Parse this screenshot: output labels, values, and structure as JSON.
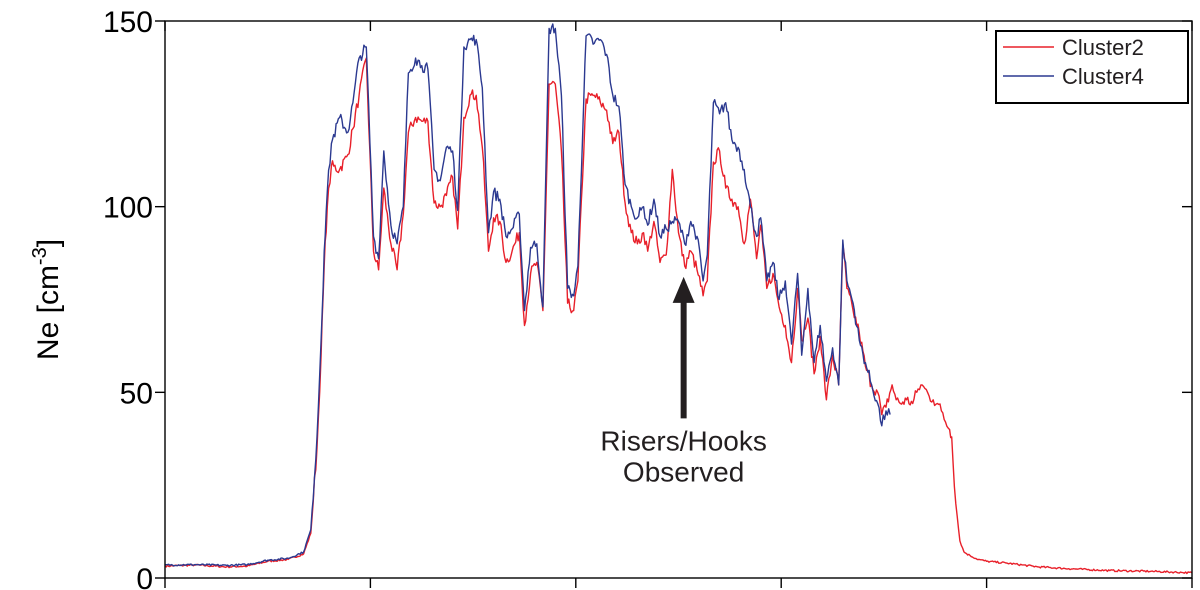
{
  "chart_data": {
    "type": "line",
    "ylabel": "Ne [cm",
    "ylabel_sup": "-3",
    "ylabel_close": "]",
    "xlabel": "",
    "ylim": [
      0,
      150
    ],
    "xlim": [
      0,
      1000
    ],
    "yticks": [
      0,
      50,
      100,
      150
    ],
    "ytick_labels": [
      "0",
      "50",
      "100",
      "150"
    ],
    "xticks": [
      0,
      200,
      400,
      600,
      800,
      1000
    ],
    "grid": false,
    "legend_position": "top-right",
    "series": [
      {
        "name": "Cluster2",
        "color": "#e8202a",
        "points": [
          [
            0,
            3.2
          ],
          [
            30,
            3.5
          ],
          [
            60,
            3.0
          ],
          [
            80,
            3.2
          ],
          [
            100,
            4.5
          ],
          [
            120,
            5.0
          ],
          [
            135,
            6.5
          ],
          [
            142,
            12
          ],
          [
            148,
            35
          ],
          [
            152,
            60
          ],
          [
            155,
            84
          ],
          [
            158,
            100
          ],
          [
            162,
            111
          ],
          [
            170,
            110
          ],
          [
            178,
            114
          ],
          [
            183,
            121
          ],
          [
            189,
            130
          ],
          [
            196,
            140
          ],
          [
            203,
            88
          ],
          [
            208,
            83
          ],
          [
            213,
            105
          ],
          [
            220,
            90
          ],
          [
            226,
            83
          ],
          [
            232,
            98
          ],
          [
            237,
            120
          ],
          [
            244,
            124
          ],
          [
            250,
            123
          ],
          [
            256,
            123
          ],
          [
            262,
            101
          ],
          [
            268,
            100
          ],
          [
            274,
            103
          ],
          [
            280,
            108
          ],
          [
            285,
            94
          ],
          [
            291,
            124
          ],
          [
            297,
            130
          ],
          [
            303,
            130
          ],
          [
            309,
            116
          ],
          [
            315,
            88
          ],
          [
            320,
            97
          ],
          [
            326,
            96
          ],
          [
            332,
            85
          ],
          [
            338,
            88
          ],
          [
            345,
            93
          ],
          [
            350,
            68
          ],
          [
            356,
            82
          ],
          [
            362,
            85
          ],
          [
            368,
            72
          ],
          [
            374,
            133
          ],
          [
            380,
            133
          ],
          [
            386,
            115
          ],
          [
            392,
            74
          ],
          [
            398,
            72
          ],
          [
            402,
            80
          ],
          [
            410,
            129
          ],
          [
            418,
            130
          ],
          [
            424,
            128
          ],
          [
            430,
            126
          ],
          [
            436,
            117
          ],
          [
            442,
            120
          ],
          [
            448,
            101
          ],
          [
            454,
            93
          ],
          [
            460,
            90
          ],
          [
            466,
            93
          ],
          [
            470,
            88
          ],
          [
            476,
            96
          ],
          [
            482,
            85
          ],
          [
            488,
            87
          ],
          [
            494,
            110
          ],
          [
            500,
            93
          ],
          [
            506,
            84
          ],
          [
            512,
            88
          ],
          [
            518,
            83
          ],
          [
            524,
            76
          ],
          [
            528,
            80
          ],
          [
            534,
            112
          ],
          [
            540,
            115
          ],
          [
            546,
            105
          ],
          [
            552,
            102
          ],
          [
            558,
            100
          ],
          [
            564,
            90
          ],
          [
            570,
            102
          ],
          [
            576,
            86
          ],
          [
            580,
            95
          ],
          [
            586,
            78
          ],
          [
            592,
            82
          ],
          [
            598,
            73
          ],
          [
            604,
            68
          ],
          [
            610,
            58
          ],
          [
            616,
            78
          ],
          [
            620,
            64
          ],
          [
            626,
            70
          ],
          [
            632,
            55
          ],
          [
            638,
            65
          ],
          [
            644,
            48
          ],
          [
            650,
            60
          ],
          [
            656,
            52
          ],
          [
            660,
            90
          ],
          [
            664,
            78
          ],
          [
            670,
            72
          ],
          [
            676,
            66
          ],
          [
            682,
            57
          ],
          [
            688,
            52
          ],
          [
            694,
            50
          ],
          [
            698,
            44
          ],
          [
            702,
            46
          ],
          [
            708,
            52
          ],
          [
            712,
            48
          ],
          [
            716,
            47
          ],
          [
            722,
            48
          ],
          [
            728,
            47
          ],
          [
            732,
            50
          ],
          [
            736,
            52
          ],
          [
            740,
            51
          ],
          [
            744,
            49
          ],
          [
            748,
            48
          ],
          [
            752,
            47
          ],
          [
            756,
            45
          ],
          [
            760,
            42
          ],
          [
            764,
            40
          ],
          [
            766,
            38
          ],
          [
            770,
            20
          ],
          [
            774,
            10
          ],
          [
            778,
            7
          ],
          [
            784,
            6
          ],
          [
            792,
            5
          ],
          [
            800,
            4.5
          ],
          [
            820,
            4
          ],
          [
            850,
            3
          ],
          [
            880,
            2.5
          ],
          [
            920,
            2
          ],
          [
            960,
            1.8
          ],
          [
            990,
            1.5
          ],
          [
            1000,
            1.4
          ]
        ]
      },
      {
        "name": "Cluster4",
        "color": "#2b3990",
        "points": [
          [
            0,
            3.5
          ],
          [
            30,
            3.6
          ],
          [
            60,
            3.4
          ],
          [
            80,
            3.6
          ],
          [
            100,
            4.8
          ],
          [
            120,
            5.3
          ],
          [
            135,
            7
          ],
          [
            142,
            13
          ],
          [
            148,
            38
          ],
          [
            152,
            64
          ],
          [
            155,
            88
          ],
          [
            158,
            104
          ],
          [
            162,
            117
          ],
          [
            170,
            124
          ],
          [
            178,
            120
          ],
          [
            183,
            128
          ],
          [
            189,
            140
          ],
          [
            196,
            143
          ],
          [
            203,
            92
          ],
          [
            208,
            86
          ],
          [
            213,
            115
          ],
          [
            220,
            95
          ],
          [
            226,
            90
          ],
          [
            232,
            100
          ],
          [
            237,
            136
          ],
          [
            244,
            140
          ],
          [
            250,
            138
          ],
          [
            256,
            137
          ],
          [
            262,
            110
          ],
          [
            268,
            107
          ],
          [
            274,
            116
          ],
          [
            280,
            115
          ],
          [
            285,
            99
          ],
          [
            291,
            143
          ],
          [
            297,
            145
          ],
          [
            303,
            145
          ],
          [
            309,
            132
          ],
          [
            315,
            93
          ],
          [
            320,
            104
          ],
          [
            326,
            102
          ],
          [
            332,
            92
          ],
          [
            338,
            94
          ],
          [
            345,
            98
          ],
          [
            350,
            72
          ],
          [
            356,
            89
          ],
          [
            362,
            90
          ],
          [
            368,
            73
          ],
          [
            374,
            148
          ],
          [
            380,
            148
          ],
          [
            386,
            130
          ],
          [
            392,
            78
          ],
          [
            398,
            76
          ],
          [
            402,
            84
          ],
          [
            410,
            146
          ],
          [
            418,
            144
          ],
          [
            424,
            145
          ],
          [
            430,
            141
          ],
          [
            436,
            130
          ],
          [
            442,
            127
          ],
          [
            448,
            106
          ],
          [
            454,
            100
          ],
          [
            460,
            97
          ],
          [
            466,
            100
          ],
          [
            470,
            95
          ],
          [
            476,
            102
          ],
          [
            482,
            92
          ],
          [
            488,
            94
          ],
          [
            494,
            96
          ],
          [
            500,
            96
          ],
          [
            506,
            90
          ],
          [
            512,
            96
          ],
          [
            518,
            92
          ],
          [
            524,
            80
          ],
          [
            528,
            87
          ],
          [
            534,
            128
          ],
          [
            540,
            125
          ],
          [
            546,
            128
          ],
          [
            552,
            118
          ],
          [
            558,
            116
          ],
          [
            564,
            110
          ],
          [
            570,
            100
          ],
          [
            576,
            92
          ],
          [
            580,
            97
          ],
          [
            586,
            80
          ],
          [
            592,
            85
          ],
          [
            598,
            75
          ],
          [
            604,
            80
          ],
          [
            610,
            63
          ],
          [
            616,
            82
          ],
          [
            620,
            60
          ],
          [
            626,
            78
          ],
          [
            632,
            58
          ],
          [
            638,
            68
          ],
          [
            644,
            53
          ],
          [
            650,
            62
          ],
          [
            656,
            52
          ],
          [
            660,
            91
          ],
          [
            664,
            80
          ],
          [
            670,
            74
          ],
          [
            676,
            64
          ],
          [
            682,
            58
          ],
          [
            688,
            52
          ],
          [
            694,
            47
          ],
          [
            698,
            41
          ],
          [
            702,
            45
          ],
          [
            706,
            44
          ]
        ]
      }
    ],
    "annotations": [
      {
        "lines": [
          "Risers/Hooks",
          "Observed"
        ],
        "arrow_x": 505,
        "arrow_tip_y": 80,
        "arrow_tail_y": 43
      }
    ]
  }
}
